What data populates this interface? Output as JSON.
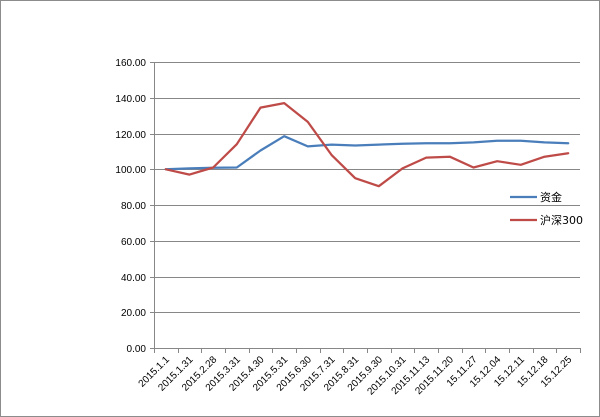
{
  "chart_data": {
    "type": "line",
    "categories": [
      "2015.1.1",
      "2015.1.31",
      "2015.2.28",
      "2015.3.31",
      "2015.4.30",
      "2015.5.31",
      "2015.6.30",
      "2015.7.31",
      "2015.8.31",
      "2015.9.30",
      "2015.10.31",
      "2015.11.13",
      "2015.11.20",
      "15.11.27",
      "15.12.04",
      "15.12.11",
      "15.12.18",
      "15.12.25"
    ],
    "series": [
      {
        "name": "资金",
        "color": "#4a7ebb",
        "values": [
          100.0,
          100.5,
          100.8,
          101.0,
          110.5,
          118.5,
          112.8,
          113.8,
          113.3,
          113.8,
          114.3,
          114.5,
          114.5,
          115.0,
          116.0,
          116.0,
          115.0,
          114.5
        ]
      },
      {
        "name": "沪深300",
        "color": "#be4b48",
        "values": [
          100.0,
          97.0,
          101.0,
          114.0,
          134.5,
          137.0,
          126.5,
          108.0,
          95.0,
          90.5,
          100.5,
          106.5,
          107.0,
          101.0,
          104.5,
          102.5,
          107.0,
          109.0
        ]
      }
    ],
    "yticks": [
      "0.00",
      "20.00",
      "40.00",
      "60.00",
      "80.00",
      "100.00",
      "120.00",
      "140.00",
      "160.00"
    ],
    "ylim": [
      0,
      160
    ],
    "grid": true,
    "legend": "right",
    "title": "",
    "xlabel": "",
    "ylabel": ""
  }
}
